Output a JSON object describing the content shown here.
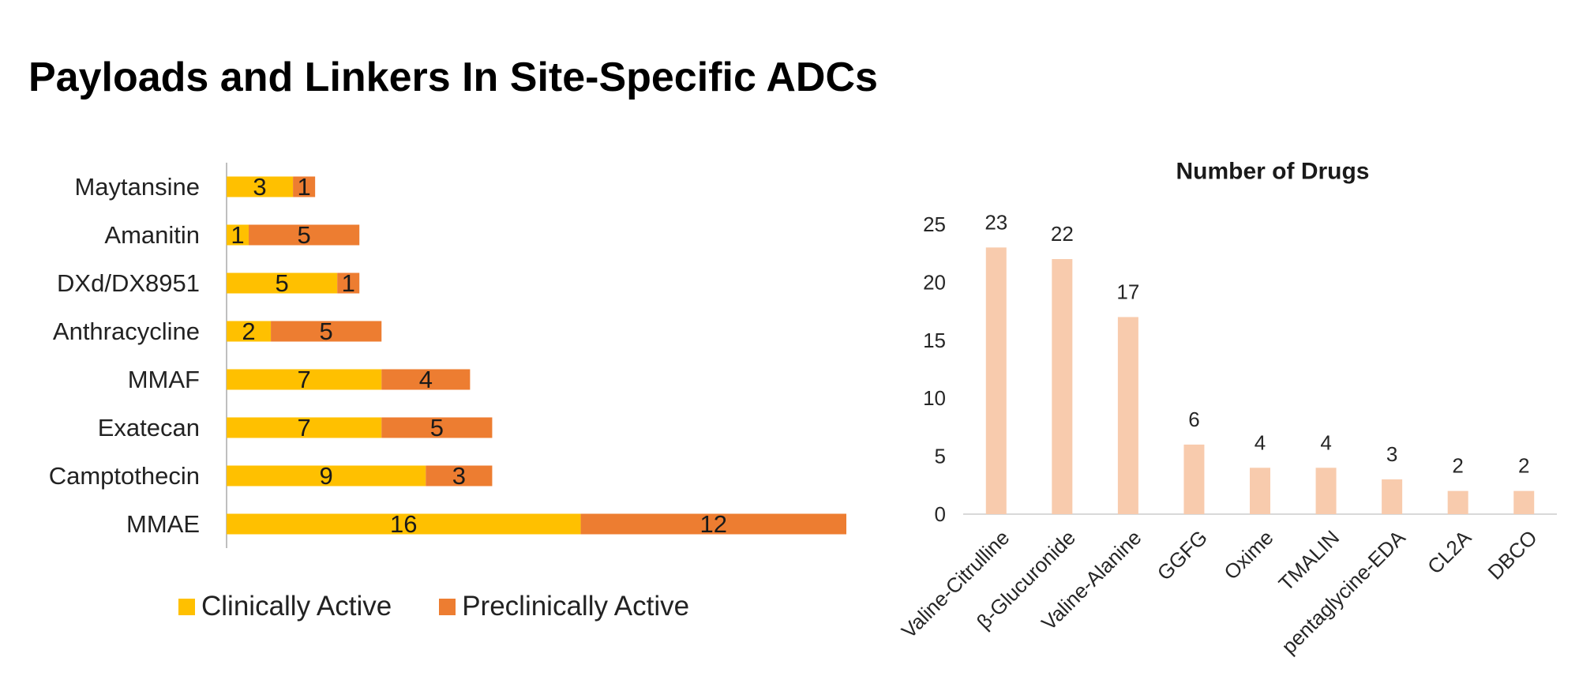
{
  "page": {
    "title": "Payloads and Linkers In Site-Specific ADCs"
  },
  "colors": {
    "clinical": "#FFC000",
    "preclinical": "#ED7D31",
    "linker_bar": "#F8CBAD",
    "axis": "#BFBFBF",
    "text": "#222222"
  },
  "chart_data": [
    {
      "type": "bar",
      "orientation": "horizontal",
      "stacked": true,
      "title": "",
      "xlabel": "",
      "ylabel": "",
      "categories": [
        "Maytansine",
        "Amanitin",
        "DXd/DX8951",
        "Anthracycline",
        "MMAF",
        "Exatecan",
        "Camptothecin",
        "MMAE"
      ],
      "series": [
        {
          "name": "Clinically Active",
          "values": [
            3,
            1,
            5,
            2,
            7,
            7,
            9,
            16
          ]
        },
        {
          "name": "Preclinically Active",
          "values": [
            1,
            5,
            1,
            5,
            4,
            5,
            3,
            12
          ]
        }
      ],
      "xlim": [
        0,
        28
      ],
      "grid": false,
      "legend": "bottom"
    },
    {
      "type": "bar",
      "orientation": "vertical",
      "title": "Number of Drugs",
      "xlabel": "",
      "ylabel": "",
      "categories": [
        "Valine-Citrulline",
        "β-Glucuronide",
        "Valine-Alanine",
        "GGFG",
        "Oxime",
        "TMALIN",
        "pentaglycine-EDA",
        "CL2A",
        "DBCO"
      ],
      "values": [
        23,
        22,
        17,
        6,
        4,
        4,
        3,
        2,
        2
      ],
      "ylim": [
        0,
        25
      ],
      "yticks": [
        "0",
        "5",
        "10",
        "15",
        "20",
        "25"
      ],
      "grid": false,
      "legend": "none"
    }
  ]
}
